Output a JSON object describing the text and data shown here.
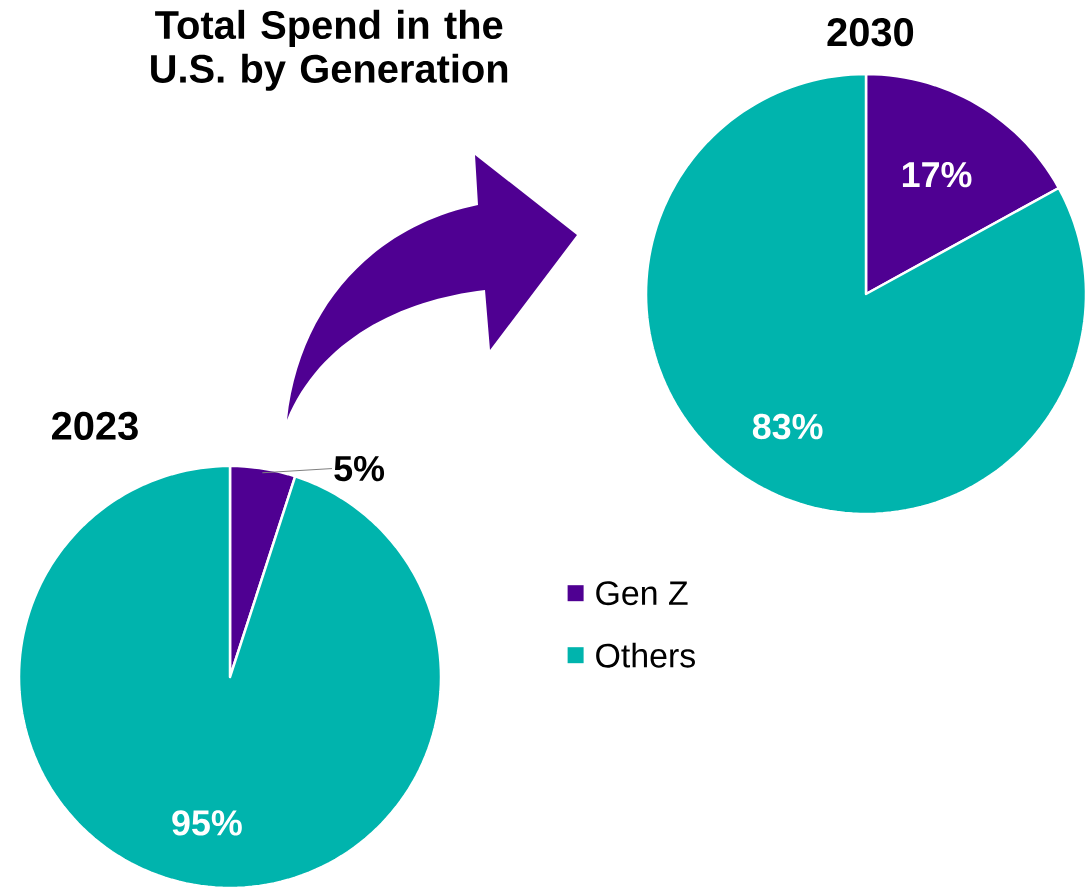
{
  "chart_data": [
    {
      "type": "pie",
      "title": "2023",
      "annotations": [
        "Total Spend in the U.S. by Generation"
      ],
      "categories": [
        null,
        null
      ],
      "values": [
        5,
        95
      ],
      "colors": [
        "#4f0092",
        "#00b4ad"
      ],
      "value_labels": [
        "5%",
        "95%"
      ]
    },
    {
      "type": "pie",
      "title": "2030",
      "categories": [
        "Gen Z",
        "Others"
      ],
      "values": [
        17,
        83
      ],
      "colors": [
        "#4f0092",
        "#00b4ad"
      ],
      "value_labels": [
        "17%",
        "83%"
      ],
      "legend": "bottom left"
    }
  ]
}
